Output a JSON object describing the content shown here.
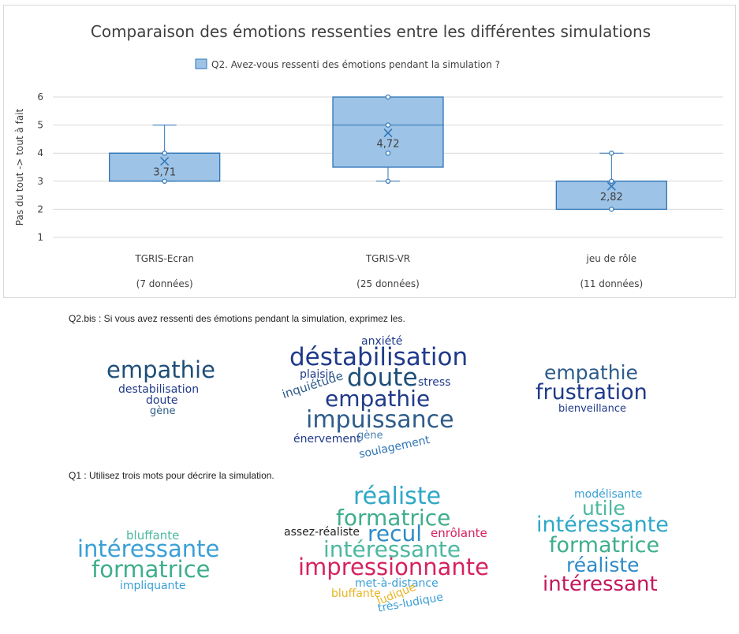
{
  "chart_data": {
    "type": "box",
    "title": "Comparaison des émotions ressenties entre les différentes simulations",
    "legend": {
      "label": "Q2. Avez-vous ressenti des émotions pendant la simulation ?",
      "position": "top"
    },
    "ylabel": "Pas du tout -> tout à fait",
    "xlabel": "",
    "ylim": [
      1,
      6
    ],
    "yticks": [
      1,
      2,
      3,
      4,
      5,
      6
    ],
    "grid": true,
    "colors": {
      "box_fill": "#9dc3e6",
      "box_stroke": "#2e75b6",
      "grid": "#d9d9d9",
      "text": "#404040"
    },
    "categories": [
      "TGRIS-Ecran",
      "TGRIS-VR",
      "jeu de rôle"
    ],
    "category_notes": [
      "(7 données)",
      "(25 données)",
      "(11 données)"
    ],
    "boxes": [
      {
        "q1": 3,
        "median": 4,
        "q3": 4,
        "whisker_low": 3,
        "whisker_high": 5,
        "mean": 3.71,
        "mean_label": "3,71",
        "points": [
          3,
          4
        ]
      },
      {
        "q1": 3.5,
        "median": 5,
        "q3": 6,
        "whisker_low": 3,
        "whisker_high": 6,
        "mean": 4.72,
        "mean_label": "4,72",
        "points": [
          3,
          4,
          5,
          6
        ]
      },
      {
        "q1": 2,
        "median": 3,
        "q3": 3,
        "whisker_low": 2,
        "whisker_high": 4,
        "mean": 2.82,
        "mean_label": "2,82",
        "points": [
          2,
          3,
          4
        ]
      }
    ]
  },
  "q2bis": {
    "label": "Q2.bis : Si vous avez ressenti des émotions pendant la simulation, exprimez les.",
    "clouds": [
      [
        {
          "text": "empathie",
          "color": "#1f4e79"
        },
        {
          "text": "destabilisation",
          "color": "#1f3a8a"
        },
        {
          "text": "doute",
          "color": "#1f3a8a"
        },
        {
          "text": "gène",
          "color": "#2e5c8a"
        }
      ],
      [
        {
          "text": "anxiété",
          "color": "#1f3a8a"
        },
        {
          "text": "déstabilisation",
          "color": "#1f3a8a"
        },
        {
          "text": "plaisir",
          "color": "#1f3a8a"
        },
        {
          "text": "doute",
          "color": "#1f4e79"
        },
        {
          "text": "stress",
          "color": "#1f3a8a"
        },
        {
          "text": "inquiétude",
          "color": "#2e5c8a"
        },
        {
          "text": "empathie",
          "color": "#1f3a8a"
        },
        {
          "text": "impuissance",
          "color": "#2e5c8a"
        },
        {
          "text": "énervement",
          "color": "#1f3a8a"
        },
        {
          "text": "gène",
          "color": "#4a7fb0"
        },
        {
          "text": "soulagement",
          "color": "#2e75b6"
        }
      ],
      [
        {
          "text": "empathie",
          "color": "#2e5c8a"
        },
        {
          "text": "frustration",
          "color": "#1f3a8a"
        },
        {
          "text": "bienveillance",
          "color": "#1f3a8a"
        }
      ]
    ]
  },
  "q1": {
    "label": "Q1 : Utilisez trois mots pour décrire la simulation.",
    "clouds": [
      [
        {
          "text": "bluffante",
          "color": "#4cb8a0"
        },
        {
          "text": "intéressante",
          "color": "#3a9fd6"
        },
        {
          "text": "formatrice",
          "color": "#3fae8c"
        },
        {
          "text": "impliquante",
          "color": "#3a9fd6"
        }
      ],
      [
        {
          "text": "réaliste",
          "color": "#2ea7c7"
        },
        {
          "text": "formatrice",
          "color": "#3fae8c"
        },
        {
          "text": "assez-réaliste",
          "color": "#222222"
        },
        {
          "text": "recul",
          "color": "#2e8bc7"
        },
        {
          "text": "enrôlante",
          "color": "#d6225f"
        },
        {
          "text": "intéressante",
          "color": "#4cb8a0"
        },
        {
          "text": "impressionnante",
          "color": "#d6225f"
        },
        {
          "text": "met-à-distance",
          "color": "#3a9fd6"
        },
        {
          "text": "bluffante",
          "color": "#e6b422"
        },
        {
          "text": "ludique",
          "color": "#e6b422"
        },
        {
          "text": "très-ludique",
          "color": "#3a9fd6"
        }
      ],
      [
        {
          "text": "modélisante",
          "color": "#3a9fd6"
        },
        {
          "text": "utile",
          "color": "#4cb8a0"
        },
        {
          "text": "intéressante",
          "color": "#2ea7c7"
        },
        {
          "text": "formatrice",
          "color": "#3fae8c"
        },
        {
          "text": "réaliste",
          "color": "#2e8bc7"
        },
        {
          "text": "intéressant",
          "color": "#c2185b"
        }
      ]
    ]
  }
}
